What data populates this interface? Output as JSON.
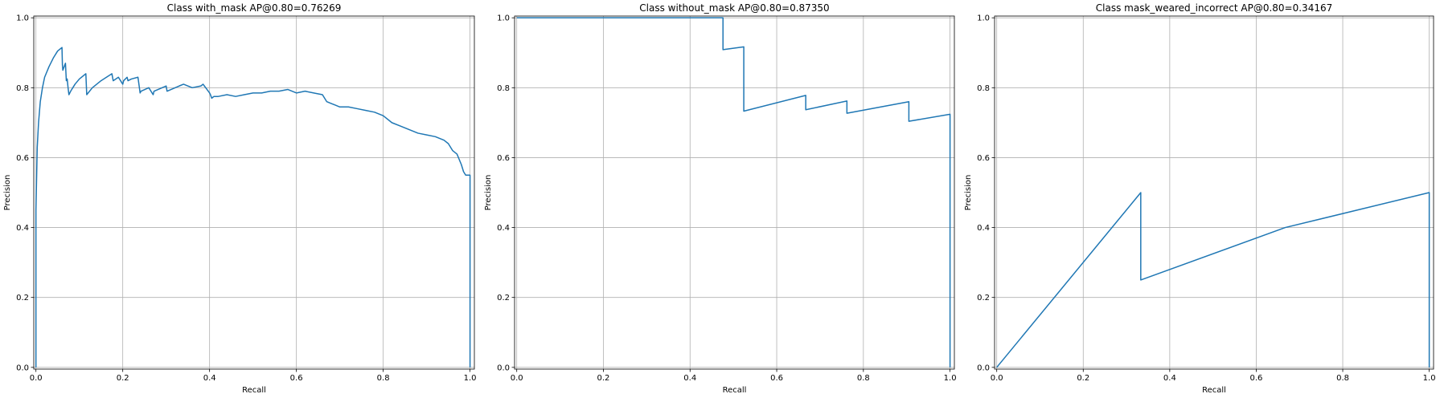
{
  "colors": {
    "series": "#1f77b4",
    "grid": "#b0b0b0",
    "axes": "#000000"
  },
  "chart_data": [
    {
      "type": "line",
      "title": "Class with_mask AP@0.80=0.76269",
      "xlabel": "Recall",
      "ylabel": "Precision",
      "xlim": [
        -0.005,
        1.01
      ],
      "ylim": [
        -0.005,
        1.005
      ],
      "xticks": [
        0.0,
        0.2,
        0.4,
        0.6,
        0.8,
        1.0
      ],
      "xtick_labels": [
        "0.0",
        "0.2",
        "0.4",
        "0.6",
        "0.8",
        "1.0"
      ],
      "yticks": [
        0.0,
        0.2,
        0.4,
        0.6,
        0.8,
        1.0
      ],
      "ytick_labels": [
        "0.0",
        "0.2",
        "0.4",
        "0.6",
        "0.8",
        "1.0"
      ],
      "grid": true,
      "series": [
        {
          "x": [
            0.0,
            0.0,
            0.003,
            0.006,
            0.01,
            0.015,
            0.02,
            0.03,
            0.04,
            0.05,
            0.06,
            0.061,
            0.062,
            0.068,
            0.07,
            0.072,
            0.074,
            0.076,
            0.08,
            0.09,
            0.1,
            0.115,
            0.117,
            0.13,
            0.15,
            0.175,
            0.178,
            0.19,
            0.2,
            0.202,
            0.21,
            0.212,
            0.22,
            0.235,
            0.24,
            0.242,
            0.26,
            0.27,
            0.272,
            0.3,
            0.302,
            0.33,
            0.34,
            0.36,
            0.38,
            0.385,
            0.4,
            0.402,
            0.405,
            0.41,
            0.42,
            0.44,
            0.46,
            0.48,
            0.5,
            0.52,
            0.54,
            0.56,
            0.58,
            0.6,
            0.62,
            0.64,
            0.66,
            0.67,
            0.68,
            0.69,
            0.7,
            0.72,
            0.74,
            0.76,
            0.78,
            0.8,
            0.82,
            0.84,
            0.86,
            0.88,
            0.9,
            0.92,
            0.94,
            0.95,
            0.96,
            0.97,
            0.98,
            0.985,
            0.99,
            0.995,
            1.0,
            1.0
          ],
          "y": [
            0.0,
            0.45,
            0.63,
            0.7,
            0.76,
            0.8,
            0.83,
            0.86,
            0.885,
            0.905,
            0.915,
            0.865,
            0.85,
            0.87,
            0.82,
            0.825,
            0.8,
            0.78,
            0.79,
            0.81,
            0.825,
            0.84,
            0.78,
            0.8,
            0.82,
            0.84,
            0.82,
            0.83,
            0.81,
            0.82,
            0.83,
            0.82,
            0.825,
            0.83,
            0.785,
            0.79,
            0.8,
            0.78,
            0.79,
            0.805,
            0.79,
            0.805,
            0.81,
            0.8,
            0.805,
            0.81,
            0.785,
            0.78,
            0.77,
            0.775,
            0.775,
            0.78,
            0.775,
            0.78,
            0.785,
            0.785,
            0.79,
            0.79,
            0.795,
            0.785,
            0.79,
            0.785,
            0.78,
            0.76,
            0.755,
            0.75,
            0.745,
            0.745,
            0.74,
            0.735,
            0.73,
            0.72,
            0.7,
            0.69,
            0.68,
            0.67,
            0.665,
            0.66,
            0.65,
            0.64,
            0.62,
            0.61,
            0.58,
            0.56,
            0.55,
            0.55,
            0.55,
            0.0
          ]
        }
      ]
    },
    {
      "type": "line",
      "title": "Class without_mask AP@0.80=0.87350",
      "xlabel": "Recall",
      "ylabel": "Precision",
      "xlim": [
        -0.005,
        1.01
      ],
      "ylim": [
        -0.005,
        1.005
      ],
      "xticks": [
        0.0,
        0.2,
        0.4,
        0.6,
        0.8,
        1.0
      ],
      "xtick_labels": [
        "0.0",
        "0.2",
        "0.4",
        "0.6",
        "0.8",
        "1.0"
      ],
      "yticks": [
        0.0,
        0.2,
        0.4,
        0.6,
        0.8,
        1.0
      ],
      "ytick_labels": [
        "0.0",
        "0.2",
        "0.4",
        "0.6",
        "0.8",
        "1.0"
      ],
      "grid": true,
      "series": [
        {
          "x": [
            0.0,
            0.476,
            0.476,
            0.524,
            0.524,
            0.667,
            0.667,
            0.762,
            0.762,
            0.905,
            0.905,
            1.0,
            1.0
          ],
          "y": [
            1.0,
            1.0,
            0.909,
            0.917,
            0.733,
            0.778,
            0.737,
            0.762,
            0.727,
            0.76,
            0.704,
            0.724,
            0.0
          ]
        }
      ]
    },
    {
      "type": "line",
      "title": "Class mask_weared_incorrect AP@0.80=0.34167",
      "xlabel": "Recall",
      "ylabel": "Precision",
      "xlim": [
        -0.005,
        1.01
      ],
      "ylim": [
        -0.005,
        1.005
      ],
      "xticks": [
        0.0,
        0.2,
        0.4,
        0.6,
        0.8,
        1.0
      ],
      "xtick_labels": [
        "0.0",
        "0.2",
        "0.4",
        "0.6",
        "0.8",
        "1.0"
      ],
      "yticks": [
        0.0,
        0.2,
        0.4,
        0.6,
        0.8,
        1.0
      ],
      "ytick_labels": [
        "0.0",
        "0.2",
        "0.4",
        "0.6",
        "0.8",
        "1.0"
      ],
      "grid": true,
      "series": [
        {
          "x": [
            0.0,
            0.333,
            0.333,
            0.667,
            1.0,
            1.0
          ],
          "y": [
            0.0,
            0.5,
            0.25,
            0.4,
            0.5,
            0.0
          ]
        }
      ]
    }
  ]
}
